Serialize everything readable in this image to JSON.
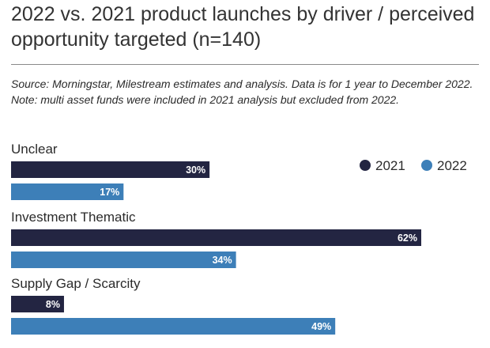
{
  "title": "2022 vs. 2021 product launches by driver / perceived opportunity targeted (n=140)",
  "source_note": "Source: Morningstar, Milestream estimates and analysis. Data is for 1 year to December 2022. Note: multi asset funds were included in 2021 analysis but excluded from 2022.",
  "chart_data": {
    "type": "bar",
    "orientation": "horizontal",
    "categories": [
      "Unclear",
      "Investment Thematic",
      "Supply Gap / Scarcity"
    ],
    "series": [
      {
        "name": "2021",
        "values": [
          30,
          62,
          8
        ],
        "color": "#232542"
      },
      {
        "name": "2022",
        "values": [
          17,
          34,
          49
        ],
        "color": "#3d7fb8"
      }
    ],
    "value_suffix": "%",
    "xlim": [
      0,
      62
    ],
    "legend_position": "top-right",
    "grid": false
  }
}
